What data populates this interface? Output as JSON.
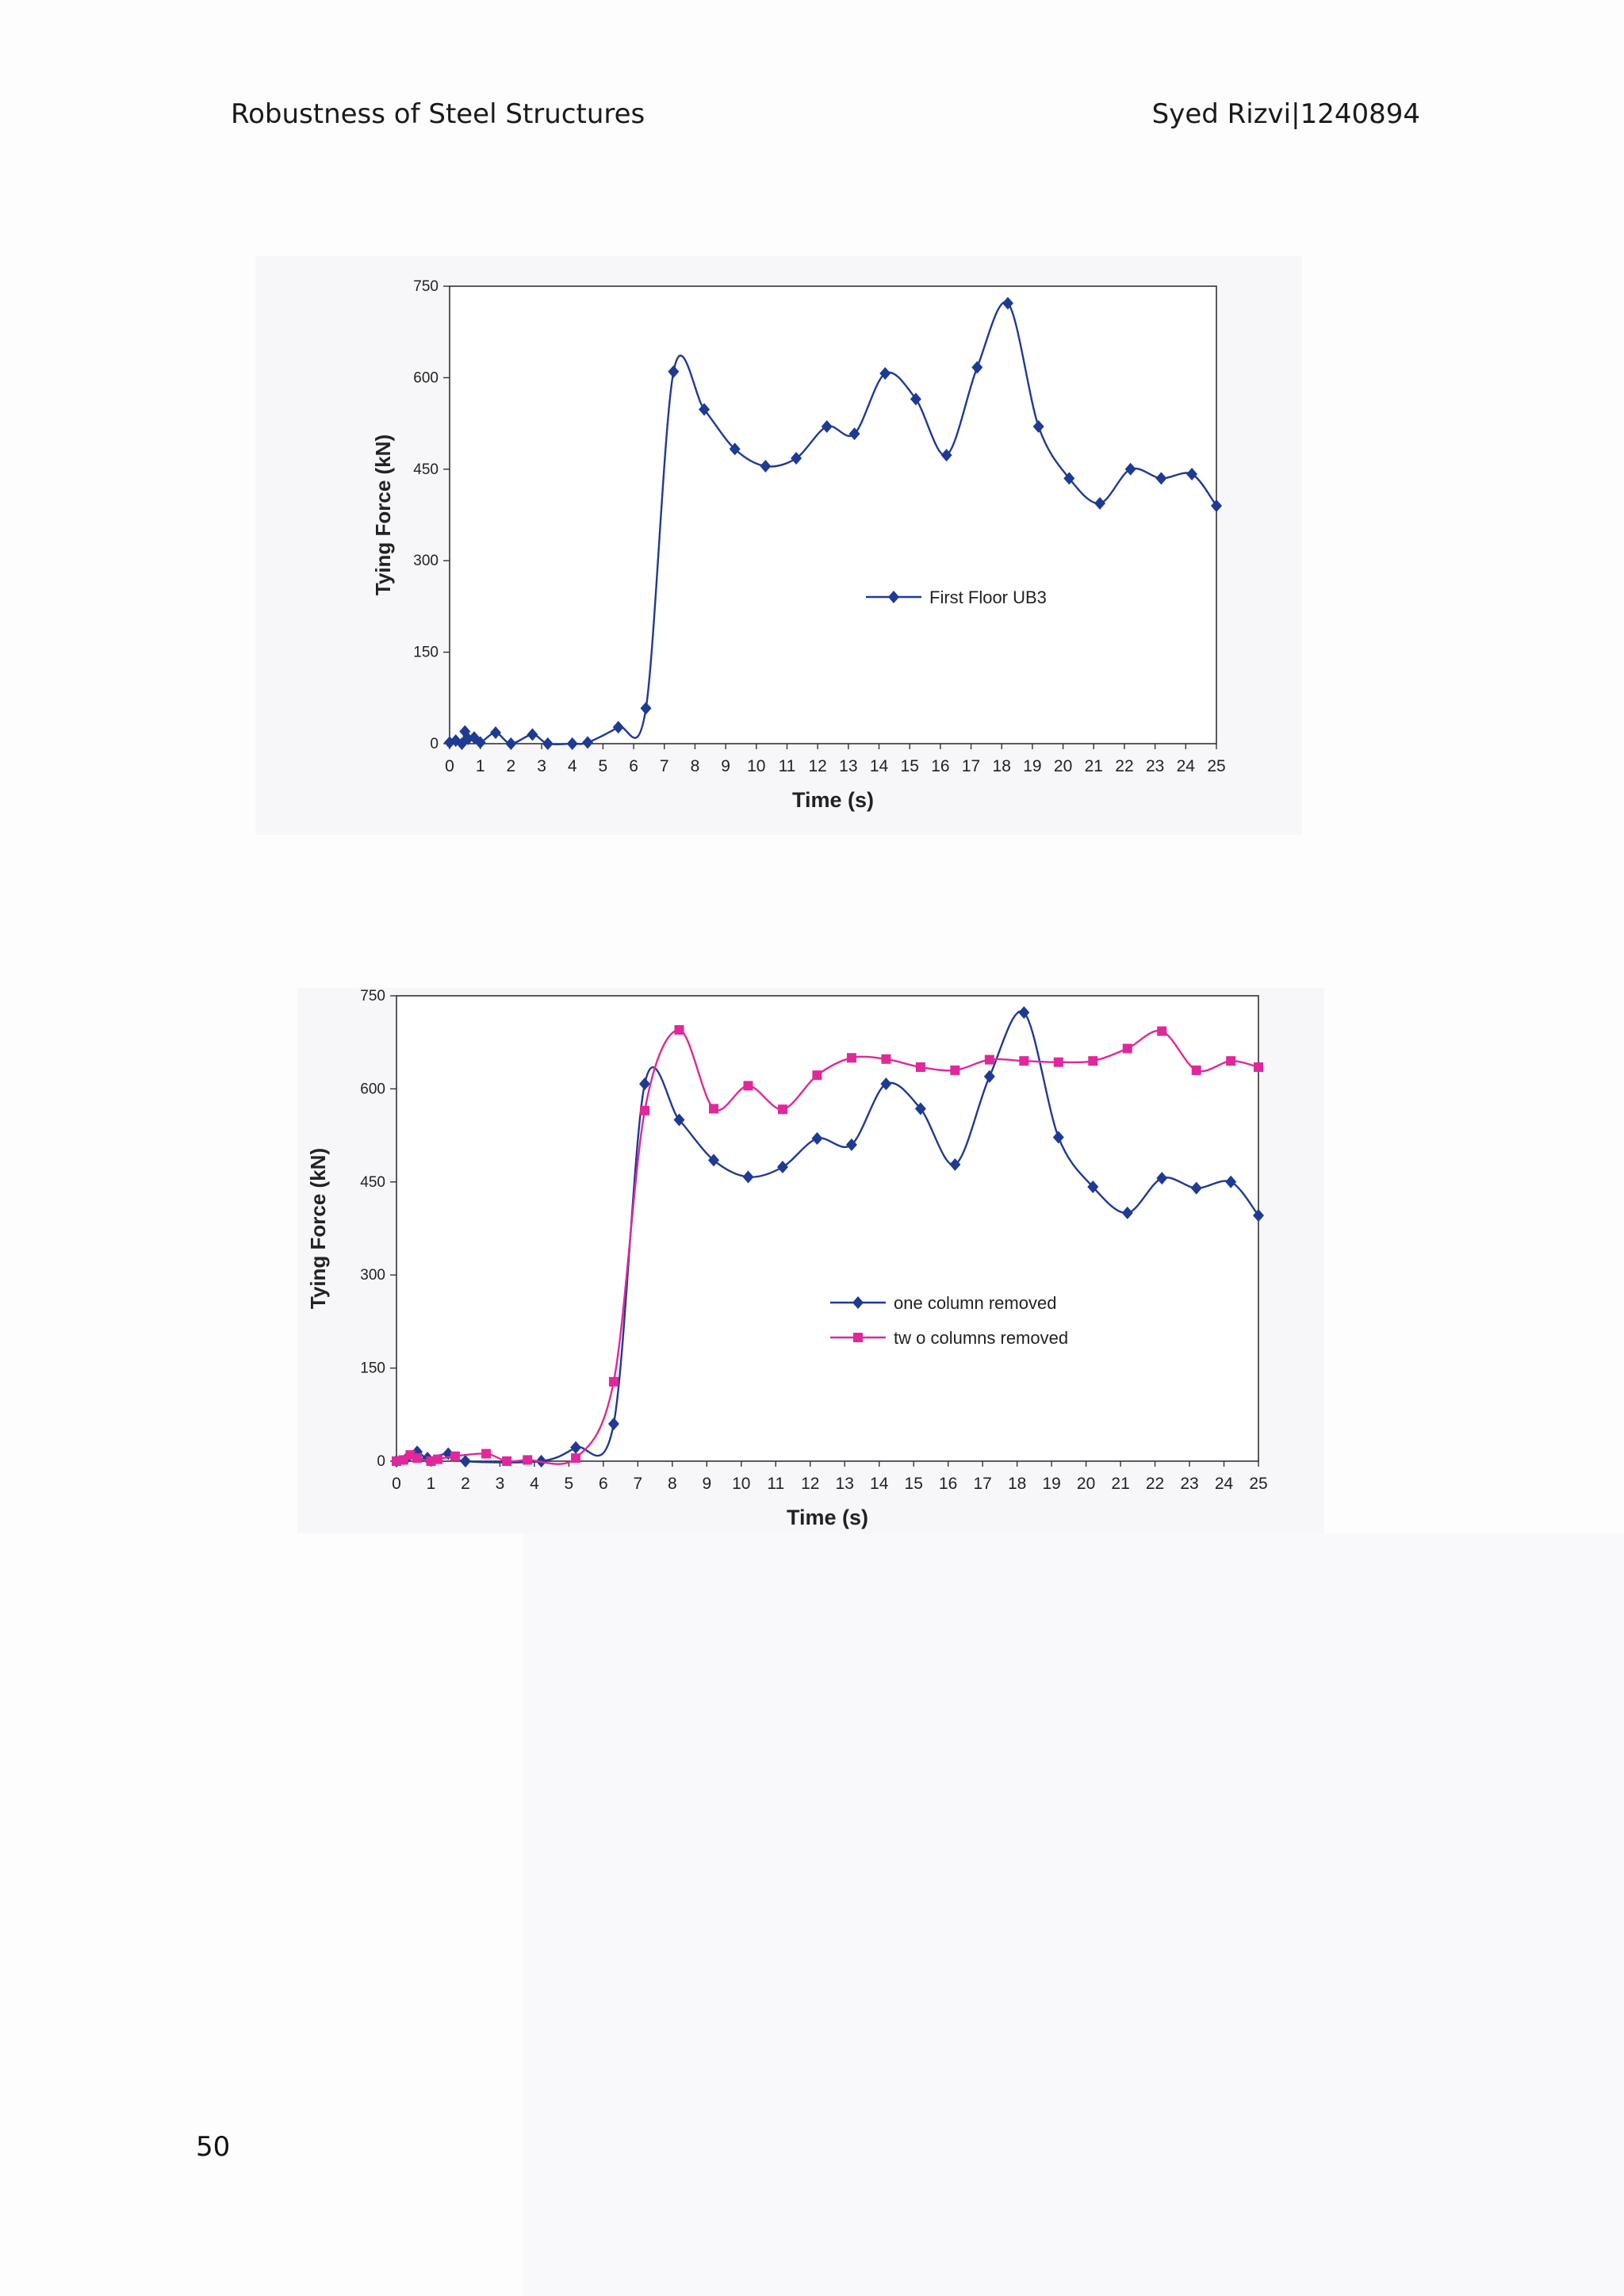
{
  "header": {
    "left": "Robustness of Steel Structures",
    "right": "Syed Rizvi|1240894"
  },
  "page_number": "50",
  "chart_data": [
    {
      "type": "line",
      "title": "",
      "xlabel": "Time (s)",
      "ylabel": "Tying Force (kN)",
      "xlim": [
        0,
        25
      ],
      "ylim": [
        0,
        750
      ],
      "yticks": [
        0,
        150,
        300,
        450,
        600,
        750
      ],
      "xticks": [
        0,
        1,
        2,
        3,
        4,
        5,
        6,
        7,
        8,
        9,
        10,
        11,
        12,
        13,
        14,
        15,
        16,
        17,
        18,
        19,
        20,
        21,
        22,
        23,
        24,
        25
      ],
      "legend": "center-right",
      "series": [
        {
          "name": "First Floor UB3",
          "color": "#1f3a93",
          "marker": "diamond",
          "x": [
            0,
            0.2,
            0.4,
            0.5,
            0.6,
            0.8,
            1.0,
            1.5,
            2.0,
            2.7,
            3.2,
            4.0,
            4.5,
            5.5,
            6.4,
            7.3,
            8.3,
            9.3,
            10.3,
            11.3,
            12.3,
            13.2,
            14.2,
            15.2,
            16.2,
            17.2,
            18.2,
            19.2,
            20.2,
            21.2,
            22.2,
            23.2,
            24.2,
            25.0
          ],
          "y": [
            2,
            5,
            0,
            20,
            8,
            10,
            2,
            18,
            0,
            15,
            0,
            0,
            2,
            27,
            58,
            610,
            548,
            483,
            455,
            468,
            520,
            508,
            607,
            565,
            473,
            617,
            722,
            520,
            435,
            394,
            450,
            435,
            442,
            390
          ]
        }
      ]
    },
    {
      "type": "line",
      "title": "",
      "xlabel": "Time (s)",
      "ylabel": "Tying  Force (kN)",
      "xlim": [
        0,
        25
      ],
      "ylim": [
        0,
        750
      ],
      "yticks": [
        0,
        150,
        300,
        450,
        600,
        750
      ],
      "xticks": [
        "0",
        "1",
        "2",
        "3",
        "4",
        "5",
        "6",
        "7",
        "8",
        "9",
        "10",
        "11",
        "12",
        "13",
        "14",
        "15",
        "16",
        "17",
        "18",
        "19",
        "20",
        "21",
        "22",
        "23",
        "24",
        "25"
      ],
      "legend": "center-right",
      "series": [
        {
          "name": "one column removed",
          "color": "#1f3a93",
          "marker": "diamond",
          "x": [
            0,
            0.3,
            0.6,
            0.9,
            1.5,
            2.0,
            4.2,
            5.2,
            6.3,
            7.2,
            8.2,
            9.2,
            10.2,
            11.2,
            12.2,
            13.2,
            14.2,
            15.2,
            16.2,
            17.2,
            18.2,
            19.2,
            20.2,
            21.2,
            22.2,
            23.2,
            24.2,
            25.0
          ],
          "y": [
            0,
            5,
            15,
            5,
            12,
            0,
            0,
            22,
            60,
            608,
            550,
            485,
            458,
            474,
            520,
            510,
            608,
            568,
            478,
            620,
            723,
            522,
            442,
            400,
            456,
            440,
            450,
            396
          ]
        },
        {
          "name": "tw o columns removed",
          "color": "#e0289b",
          "marker": "square",
          "x": [
            0,
            0.2,
            0.4,
            0.6,
            1.0,
            1.2,
            1.7,
            2.6,
            3.2,
            3.8,
            5.2,
            6.3,
            7.2,
            8.2,
            9.2,
            10.2,
            11.2,
            12.2,
            13.2,
            14.2,
            15.2,
            16.2,
            17.2,
            18.2,
            19.2,
            20.2,
            21.2,
            22.2,
            23.2,
            24.2,
            25.0
          ],
          "y": [
            0,
            2,
            10,
            5,
            0,
            3,
            8,
            12,
            0,
            2,
            5,
            128,
            565,
            695,
            568,
            605,
            567,
            622,
            650,
            648,
            635,
            630,
            647,
            645,
            643,
            645,
            665,
            693,
            630,
            645,
            635
          ]
        }
      ]
    }
  ]
}
